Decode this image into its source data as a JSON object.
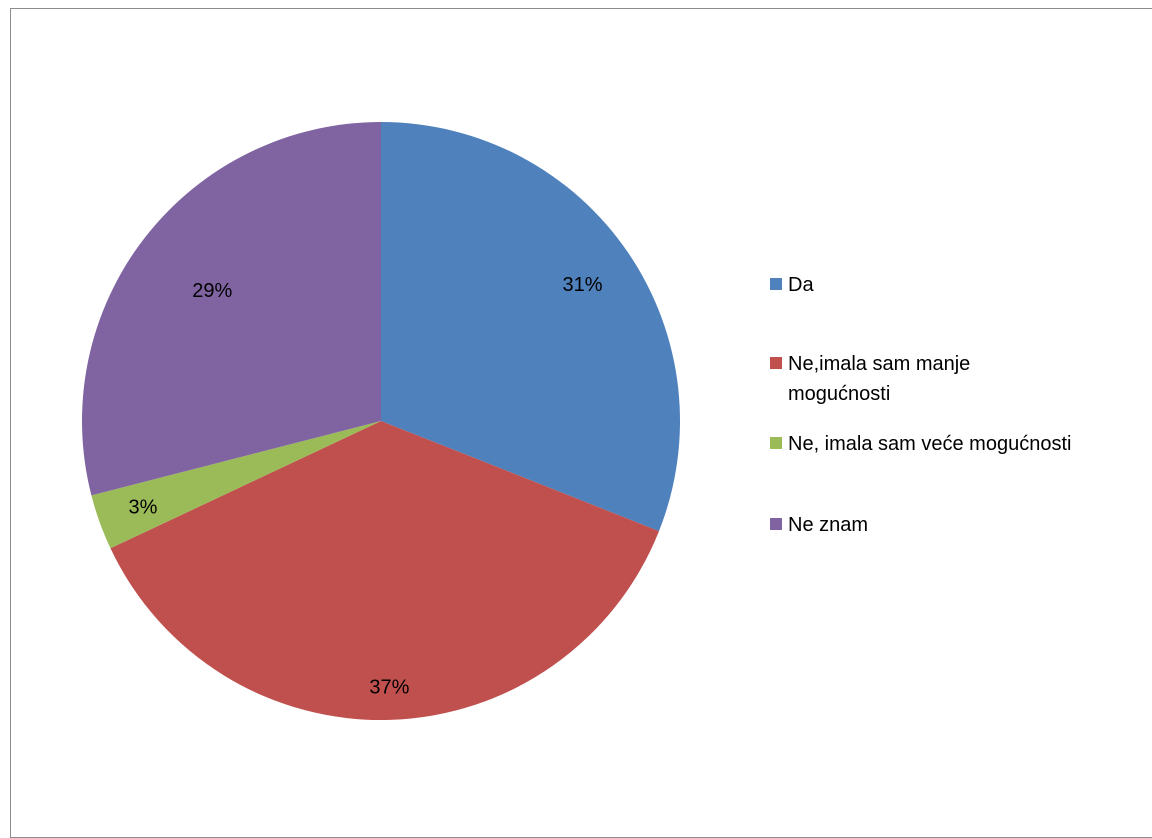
{
  "chart_data": {
    "type": "pie",
    "categories": [
      "Da",
      "Ne,imala sam manje mogućnosti",
      "Ne, imala sam veće mogućnosti",
      "Ne znam"
    ],
    "values": [
      31,
      37,
      3,
      29
    ],
    "data_labels": [
      "31%",
      "37%",
      "3%",
      "29%"
    ],
    "colors": [
      "#4f81bd",
      "#c0504d",
      "#9bbb59",
      "#8064a2"
    ],
    "start_angle_deg": 0,
    "direction": "clockwise",
    "title": "",
    "legend": {
      "position": "right",
      "entries": [
        {
          "label_lines": [
            "Da"
          ]
        },
        {
          "label_lines": [
            "Ne,imala sam manje",
            "mogućnosti"
          ]
        },
        {
          "label_lines": [
            "Ne, imala sam veće mogućnosti"
          ]
        },
        {
          "label_lines": [
            "Ne znam"
          ]
        }
      ]
    }
  }
}
